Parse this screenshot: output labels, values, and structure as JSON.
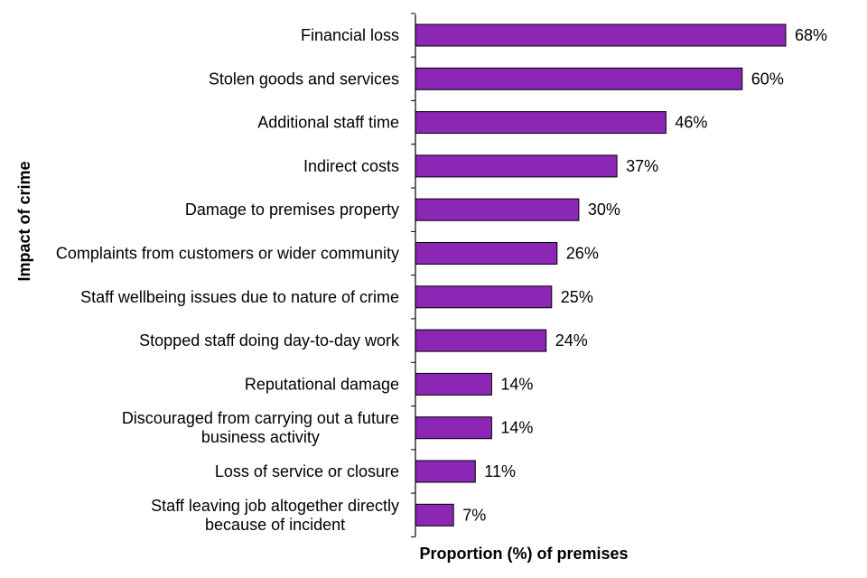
{
  "chart_data": {
    "type": "bar",
    "orientation": "horizontal",
    "title": "",
    "xlabel": "Proportion (%) of premises",
    "ylabel": "Impact of crime",
    "xlim": [
      0,
      70
    ],
    "grid": false,
    "bar_color": "#8b26b5",
    "categories": [
      "Financial loss",
      "Stolen goods and services",
      "Additional staff time",
      "Indirect costs",
      "Damage to premises property",
      "Complaints from customers or wider community",
      "Staff wellbeing issues due to nature of crime",
      "Stopped staff doing day-to-day work",
      "Reputational damage",
      "Discouraged from carrying out a future business activity",
      "Loss of service or closure",
      "Staff leaving job altogether directly because of incident"
    ],
    "values": [
      68,
      60,
      46,
      37,
      30,
      26,
      25,
      24,
      14,
      14,
      11,
      7
    ],
    "data_labels": [
      "68%",
      "60%",
      "46%",
      "37%",
      "30%",
      "26%",
      "25%",
      "24%",
      "14%",
      "14%",
      "11%",
      "7%"
    ]
  }
}
